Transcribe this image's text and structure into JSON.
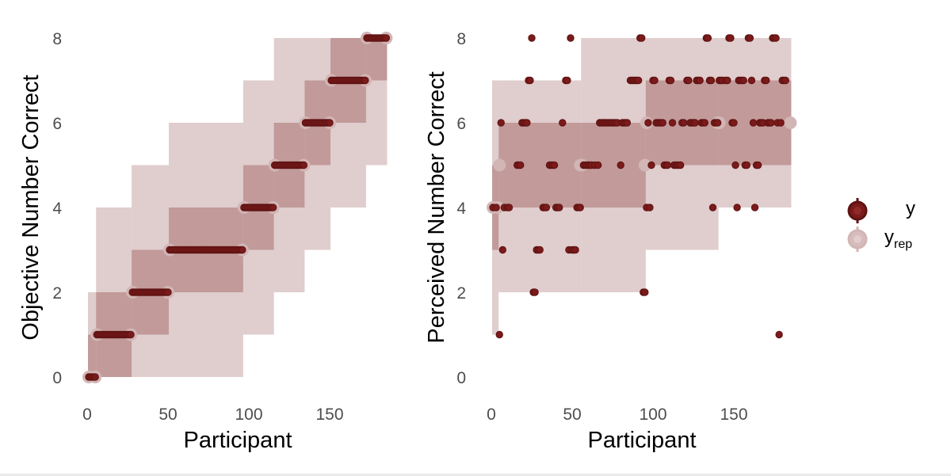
{
  "colors": {
    "y": "#7b1a1a",
    "y_stroke": "#5e1212",
    "yrep_outer": "#d6bcbc",
    "yrep_inner": "#b58585",
    "yrep_point": "#d2b5b5",
    "text_tick": "#4d4d4d"
  },
  "legend": {
    "y_label": "y",
    "yrep_label": "y",
    "yrep_sub": "rep"
  },
  "chart_data": [
    {
      "type": "scatter",
      "subtype": "ppc_intervals",
      "title": "",
      "xlabel": "Participant",
      "ylabel": "Objective Number Correct",
      "xlim": [
        0,
        187
      ],
      "ylim": [
        0,
        8
      ],
      "xticks": [
        0,
        50,
        100,
        150
      ],
      "yticks": [
        0,
        2,
        4,
        6,
        8
      ],
      "grid": false,
      "legend_position": "right",
      "series": [
        {
          "name": "y",
          "segments": [
            {
              "x": [
                1,
                5
              ],
              "y": 0
            },
            {
              "x": [
                6,
                27
              ],
              "y": 1
            },
            {
              "x": [
                28,
                50
              ],
              "y": 2
            },
            {
              "x": [
                51,
                96
              ],
              "y": 3
            },
            {
              "x": [
                97,
                115
              ],
              "y": 4
            },
            {
              "x": [
                116,
                134
              ],
              "y": 5
            },
            {
              "x": [
                135,
                150
              ],
              "y": 6
            },
            {
              "x": [
                151,
                172
              ],
              "y": 7
            },
            {
              "x": [
                173,
                185
              ],
              "y": 8
            }
          ]
        },
        {
          "name": "y_rep",
          "groups": [
            {
              "x": [
                1,
                5
              ],
              "median": 0,
              "inner": [
                0,
                1
              ],
              "outer": [
                0,
                2
              ]
            },
            {
              "x": [
                6,
                27
              ],
              "median": 1,
              "inner": [
                0,
                2
              ],
              "outer": [
                0,
                4
              ]
            },
            {
              "x": [
                28,
                50
              ],
              "median": 2,
              "inner": [
                1,
                3
              ],
              "outer": [
                0,
                5
              ]
            },
            {
              "x": [
                51,
                96
              ],
              "median": 3,
              "inner": [
                2,
                4
              ],
              "outer": [
                0,
                6
              ]
            },
            {
              "x": [
                97,
                115
              ],
              "median": 4,
              "inner": [
                3,
                5
              ],
              "outer": [
                1,
                7
              ]
            },
            {
              "x": [
                116,
                134
              ],
              "median": 5,
              "inner": [
                4,
                6
              ],
              "outer": [
                2,
                8
              ]
            },
            {
              "x": [
                135,
                150
              ],
              "median": 6,
              "inner": [
                5,
                7
              ],
              "outer": [
                3,
                8
              ]
            },
            {
              "x": [
                151,
                172
              ],
              "median": 7,
              "inner": [
                6,
                8
              ],
              "outer": [
                4,
                8
              ]
            },
            {
              "x": [
                173,
                185
              ],
              "median": 8,
              "inner": [
                7,
                8
              ],
              "outer": [
                5,
                8
              ]
            }
          ]
        }
      ]
    },
    {
      "type": "scatter",
      "subtype": "ppc_intervals",
      "title": "",
      "xlabel": "Participant",
      "ylabel": "Perceived Number Correct",
      "xlim": [
        0,
        187
      ],
      "ylim": [
        0,
        8
      ],
      "xticks": [
        0,
        50,
        100,
        150
      ],
      "yticks": [
        0,
        2,
        4,
        6,
        8
      ],
      "grid": false,
      "legend_position": "right",
      "series": [
        {
          "name": "y",
          "points": [
            [
              1,
              4
            ],
            [
              3,
              4
            ],
            [
              5,
              1
            ],
            [
              6,
              6
            ],
            [
              7,
              3
            ],
            [
              8,
              4
            ],
            [
              10,
              4
            ],
            [
              11,
              4
            ],
            [
              16,
              5
            ],
            [
              17,
              5
            ],
            [
              18,
              5
            ],
            [
              19,
              6
            ],
            [
              20,
              6
            ],
            [
              21,
              6
            ],
            [
              22,
              6
            ],
            [
              23,
              7
            ],
            [
              24,
              7
            ],
            [
              25,
              8
            ],
            [
              26,
              2
            ],
            [
              27,
              2
            ],
            [
              28,
              3
            ],
            [
              29,
              3
            ],
            [
              30,
              3
            ],
            [
              32,
              4
            ],
            [
              33,
              4
            ],
            [
              34,
              4
            ],
            [
              36,
              5
            ],
            [
              37,
              5
            ],
            [
              38,
              5
            ],
            [
              39,
              5
            ],
            [
              40,
              4
            ],
            [
              41,
              4
            ],
            [
              42,
              4
            ],
            [
              44,
              6
            ],
            [
              46,
              7
            ],
            [
              47,
              7
            ],
            [
              48,
              3
            ],
            [
              49,
              8
            ],
            [
              50,
              3
            ],
            [
              51,
              3
            ],
            [
              52,
              3
            ],
            [
              53,
              4
            ],
            [
              54,
              4
            ],
            [
              55,
              4
            ],
            [
              57,
              5
            ],
            [
              58,
              5
            ],
            [
              59,
              5
            ],
            [
              60,
              5
            ],
            [
              61,
              5
            ],
            [
              62,
              5
            ],
            [
              64,
              5
            ],
            [
              66,
              5
            ],
            [
              67,
              6
            ],
            [
              68,
              6
            ],
            [
              69,
              6
            ],
            [
              70,
              6
            ],
            [
              71,
              6
            ],
            [
              72,
              6
            ],
            [
              73,
              6
            ],
            [
              74,
              6
            ],
            [
              75,
              6
            ],
            [
              76,
              6
            ],
            [
              77,
              6
            ],
            [
              78,
              6
            ],
            [
              80,
              5
            ],
            [
              81,
              6
            ],
            [
              82,
              6
            ],
            [
              83,
              6
            ],
            [
              84,
              6
            ],
            [
              86,
              7
            ],
            [
              87,
              7
            ],
            [
              88,
              7
            ],
            [
              89,
              7
            ],
            [
              90,
              7
            ],
            [
              91,
              7
            ],
            [
              92,
              8
            ],
            [
              93,
              8
            ],
            [
              94,
              2
            ],
            [
              95,
              2
            ],
            [
              96,
              4
            ],
            [
              97,
              6
            ],
            [
              98,
              4
            ],
            [
              99,
              5
            ],
            [
              100,
              7
            ],
            [
              101,
              7
            ],
            [
              102,
              6
            ],
            [
              103,
              6
            ],
            [
              104,
              6
            ],
            [
              105,
              6
            ],
            [
              106,
              6
            ],
            [
              107,
              5
            ],
            [
              108,
              5
            ],
            [
              109,
              5
            ],
            [
              110,
              7
            ],
            [
              111,
              7
            ],
            [
              112,
              6
            ],
            [
              113,
              5
            ],
            [
              114,
              5
            ],
            [
              115,
              5
            ],
            [
              116,
              5
            ],
            [
              117,
              5
            ],
            [
              118,
              6
            ],
            [
              119,
              6
            ],
            [
              121,
              7
            ],
            [
              122,
              7
            ],
            [
              123,
              6
            ],
            [
              124,
              6
            ],
            [
              125,
              6
            ],
            [
              126,
              6
            ],
            [
              127,
              7
            ],
            [
              128,
              7
            ],
            [
              129,
              7
            ],
            [
              130,
              6
            ],
            [
              131,
              6
            ],
            [
              132,
              6
            ],
            [
              133,
              8
            ],
            [
              134,
              8
            ],
            [
              135,
              7
            ],
            [
              136,
              7
            ],
            [
              137,
              4
            ],
            [
              138,
              6
            ],
            [
              139,
              6
            ],
            [
              140,
              6
            ],
            [
              141,
              7
            ],
            [
              142,
              7
            ],
            [
              143,
              7
            ],
            [
              145,
              7
            ],
            [
              146,
              7
            ],
            [
              147,
              8
            ],
            [
              148,
              8
            ],
            [
              149,
              6
            ],
            [
              150,
              6
            ],
            [
              151,
              5
            ],
            [
              152,
              4
            ],
            [
              153,
              7
            ],
            [
              154,
              7
            ],
            [
              155,
              7
            ],
            [
              156,
              7
            ],
            [
              157,
              5
            ],
            [
              158,
              5
            ],
            [
              159,
              8
            ],
            [
              160,
              8
            ],
            [
              161,
              7
            ],
            [
              162,
              6
            ],
            [
              163,
              4
            ],
            [
              164,
              5
            ],
            [
              165,
              5
            ],
            [
              166,
              6
            ],
            [
              167,
              6
            ],
            [
              168,
              6
            ],
            [
              169,
              7
            ],
            [
              170,
              7
            ],
            [
              171,
              6
            ],
            [
              172,
              6
            ],
            [
              173,
              6
            ],
            [
              174,
              8
            ],
            [
              175,
              8
            ],
            [
              176,
              8
            ],
            [
              177,
              6
            ],
            [
              178,
              1
            ],
            [
              179,
              6
            ],
            [
              180,
              7
            ],
            [
              181,
              7
            ],
            [
              182,
              7
            ]
          ]
        },
        {
          "name": "y_rep",
          "groups": [
            {
              "x": [
                1,
                4
              ],
              "median": 4,
              "inner": [
                3,
                5
              ],
              "outer": [
                1,
                7
              ]
            },
            {
              "x": [
                5,
                55
              ],
              "median": 5,
              "inner": [
                4,
                6
              ],
              "outer": [
                2,
                7
              ]
            },
            {
              "x": [
                56,
                95
              ],
              "median": 5,
              "inner": [
                4,
                6
              ],
              "outer": [
                2,
                8
              ]
            },
            {
              "x": [
                96,
                140
              ],
              "median": 6,
              "inner": [
                5,
                7
              ],
              "outer": [
                3,
                8
              ]
            },
            {
              "x": [
                141,
                185
              ],
              "median": 6,
              "inner": [
                5,
                7
              ],
              "outer": [
                4,
                8
              ]
            }
          ]
        }
      ]
    }
  ]
}
